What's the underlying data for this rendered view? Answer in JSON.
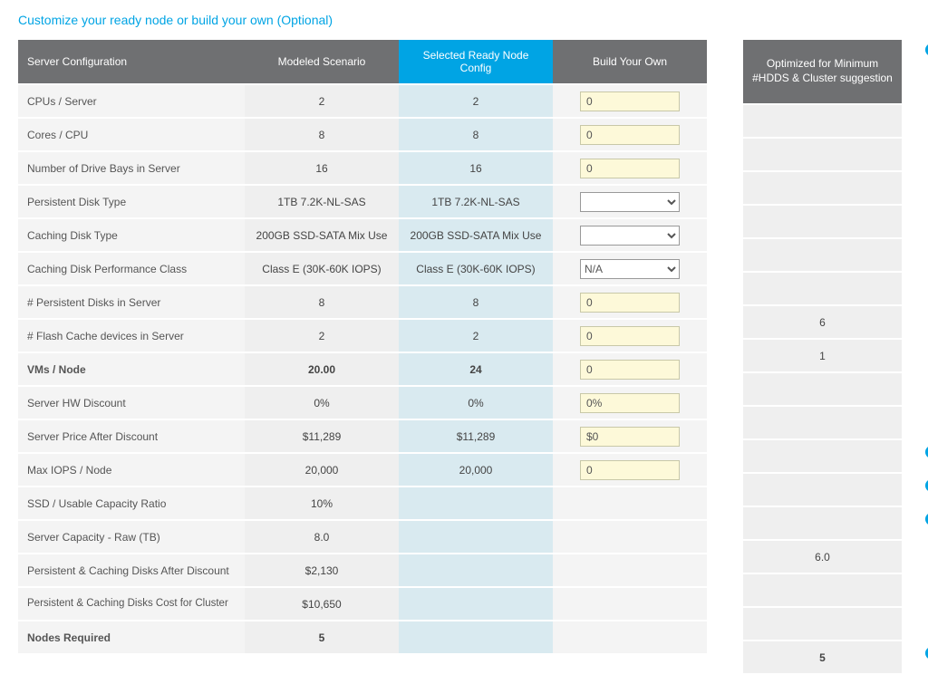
{
  "title": "Customize your ready node or build your own (Optional)",
  "headers": {
    "config": "Server Configuration",
    "modeled": "Modeled Scenario",
    "selected": "Selected Ready Node Config",
    "byo": "Build Your Own",
    "optimized": "Optimized for Minimum #HDDS & Cluster suggestion"
  },
  "rows": [
    {
      "label": "CPUs / Server",
      "modeled": "2",
      "ready": "2",
      "byo_type": "input",
      "byo": "0",
      "opt": ""
    },
    {
      "label": "Cores / CPU",
      "modeled": "8",
      "ready": "8",
      "byo_type": "input",
      "byo": "0",
      "opt": ""
    },
    {
      "label": "Number of Drive Bays in Server",
      "modeled": "16",
      "ready": "16",
      "byo_type": "input",
      "byo": "0",
      "opt": ""
    },
    {
      "label": "Persistent Disk Type",
      "modeled": "1TB 7.2K-NL-SAS",
      "ready": "1TB 7.2K-NL-SAS",
      "byo_type": "select",
      "byo": "",
      "opt": ""
    },
    {
      "label": "Caching Disk Type",
      "modeled": "200GB SSD-SATA Mix Use",
      "ready": "200GB SSD-SATA Mix Use",
      "byo_type": "select",
      "byo": "",
      "opt": ""
    },
    {
      "label": "Caching Disk Performance Class",
      "modeled": "Class E (30K-60K IOPS)",
      "ready": "Class E (30K-60K IOPS)",
      "byo_type": "select",
      "byo": "N/A",
      "opt": ""
    },
    {
      "label": "# Persistent Disks in Server",
      "modeled": "8",
      "ready": "8",
      "byo_type": "input",
      "byo": "0",
      "opt": "6"
    },
    {
      "label": "# Flash Cache devices in Server",
      "modeled": "2",
      "ready": "2",
      "byo_type": "input",
      "byo": "0",
      "opt": "1"
    },
    {
      "label": "VMs / Node",
      "modeled": "20.00",
      "ready": "24",
      "byo_type": "input",
      "byo": "0",
      "opt": "",
      "bold": true
    },
    {
      "label": "Server HW Discount",
      "modeled": "0%",
      "ready": "0%",
      "byo_type": "input",
      "byo": "0%",
      "opt": ""
    },
    {
      "label": "Server Price After Discount",
      "modeled": "$11,289",
      "ready": "$11,289",
      "byo_type": "input",
      "byo": "$0",
      "opt": "",
      "info": true
    },
    {
      "label": "Max IOPS / Node",
      "modeled": "20,000",
      "ready": "20,000",
      "byo_type": "input",
      "byo": "0",
      "opt": "",
      "info": true
    },
    {
      "label": "SSD / Usable Capacity Ratio",
      "modeled": "10%",
      "ready": "",
      "byo_type": "none",
      "byo": "",
      "opt": "",
      "info": true
    },
    {
      "label": "Server Capacity - Raw (TB)",
      "modeled": "8.0",
      "ready": "",
      "byo_type": "none",
      "byo": "",
      "opt": "6.0"
    },
    {
      "label": "Persistent & Caching Disks After Discount",
      "modeled": "$2,130",
      "ready": "",
      "byo_type": "none",
      "byo": "",
      "opt": ""
    },
    {
      "label": "Persistent & Caching Disks Cost for Cluster",
      "modeled": "$10,650",
      "ready": "",
      "byo_type": "none",
      "byo": "",
      "opt": "",
      "multiline": true
    },
    {
      "label": "Nodes Required",
      "modeled": "5",
      "ready": "",
      "byo_type": "none",
      "byo": "",
      "opt": "5",
      "bold": true,
      "info": true
    }
  ],
  "colors": {
    "accent": "#00a4e4",
    "header_bg": "#6f7072",
    "row_bg": "#f4f4f4",
    "modeled_bg": "#efefef",
    "ready_bg": "#d9eaf0",
    "input_bg": "#fdf9d9"
  }
}
